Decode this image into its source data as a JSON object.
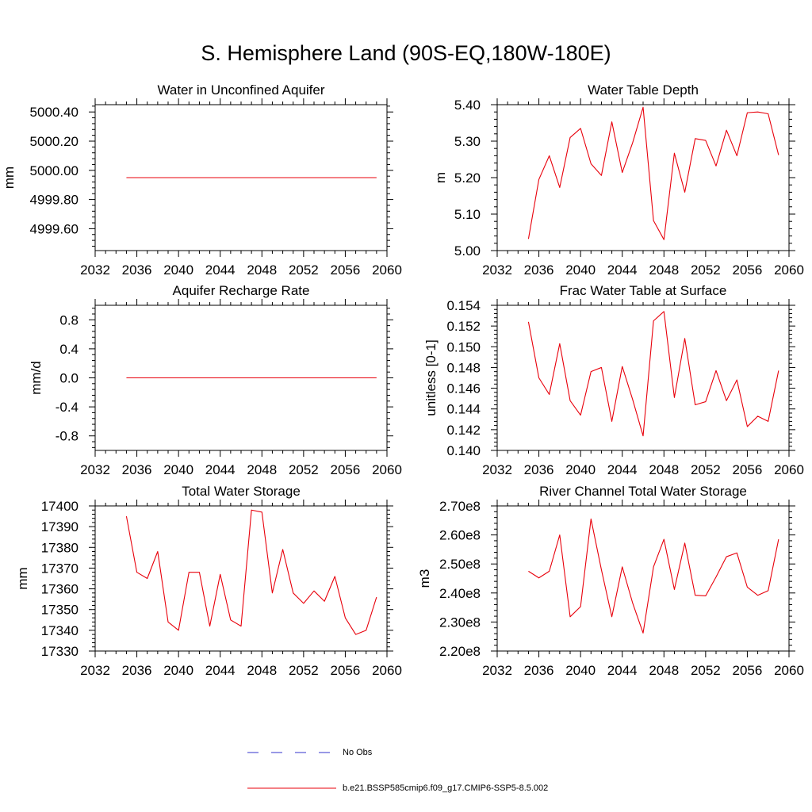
{
  "figure_title": "S. Hemisphere Land (90S-EQ,180W-180E)",
  "colors": {
    "model": "#e8000b",
    "obs": "#3333cc",
    "axis": "#000000"
  },
  "legend": {
    "entries": [
      {
        "label": "No Obs",
        "style": "dashed",
        "color": "#3333cc"
      },
      {
        "label": "b.e21.BSSP585cmip6.f09_g17.CMIP6-SSP5-8.5.002",
        "style": "solid",
        "color": "#e8000b"
      }
    ]
  },
  "chart_data": [
    {
      "type": "line",
      "title": "Water in Unconfined Aquifer",
      "ylabel": "mm",
      "xlim": [
        2032,
        2060
      ],
      "ylim": [
        4999.45,
        5000.45
      ],
      "xticks": [
        "2032",
        "2036",
        "2040",
        "2044",
        "2048",
        "2052",
        "2056",
        "2060"
      ],
      "yticks": [
        {
          "v": 4999.6,
          "label": "4999.60"
        },
        {
          "v": 4999.8,
          "label": "4999.80"
        },
        {
          "v": 5000.0,
          "label": "5000.00"
        },
        {
          "v": 5000.2,
          "label": "5000.20"
        },
        {
          "v": 5000.4,
          "label": "5000.40"
        }
      ],
      "series": [
        {
          "x": [
            2035,
            2036,
            2037,
            2038,
            2039,
            2040,
            2041,
            2042,
            2043,
            2044,
            2045,
            2046,
            2047,
            2048,
            2049,
            2050,
            2051,
            2052,
            2053,
            2054,
            2055,
            2056,
            2057,
            2058,
            2059
          ],
          "y": [
            4999.95,
            4999.95,
            4999.95,
            4999.95,
            4999.95,
            4999.95,
            4999.95,
            4999.95,
            4999.95,
            4999.95,
            4999.95,
            4999.95,
            4999.95,
            4999.95,
            4999.95,
            4999.95,
            4999.95,
            4999.95,
            4999.95,
            4999.95,
            4999.95,
            4999.95,
            4999.95,
            4999.95,
            4999.95
          ]
        }
      ]
    },
    {
      "type": "line",
      "title": "Water Table Depth",
      "ylabel": "m",
      "xlim": [
        2032,
        2060
      ],
      "ylim": [
        5.0,
        5.4
      ],
      "xticks": [
        "2032",
        "2036",
        "2040",
        "2044",
        "2048",
        "2052",
        "2056",
        "2060"
      ],
      "yticks": [
        {
          "v": 5.0,
          "label": "5.00"
        },
        {
          "v": 5.1,
          "label": "5.10"
        },
        {
          "v": 5.2,
          "label": "5.20"
        },
        {
          "v": 5.3,
          "label": "5.30"
        },
        {
          "v": 5.4,
          "label": "5.40"
        }
      ],
      "series": [
        {
          "x": [
            2035,
            2036,
            2037,
            2038,
            2039,
            2040,
            2041,
            2042,
            2043,
            2044,
            2045,
            2046,
            2047,
            2048,
            2049,
            2050,
            2051,
            2052,
            2053,
            2054,
            2055,
            2056,
            2057,
            2058,
            2059
          ],
          "y": [
            5.032,
            5.195,
            5.26,
            5.173,
            5.31,
            5.335,
            5.238,
            5.206,
            5.353,
            5.214,
            5.296,
            5.393,
            5.082,
            5.03,
            5.267,
            5.16,
            5.307,
            5.302,
            5.232,
            5.33,
            5.26,
            5.378,
            5.38,
            5.375,
            5.262
          ]
        }
      ]
    },
    {
      "type": "line",
      "title": "Aquifer Recharge Rate",
      "ylabel": "mm/d",
      "xlim": [
        2032,
        2060
      ],
      "ylim": [
        -1.0,
        1.0
      ],
      "xticks": [
        "2032",
        "2036",
        "2040",
        "2044",
        "2048",
        "2052",
        "2056",
        "2060"
      ],
      "yticks": [
        {
          "v": -0.8,
          "label": "-0.8"
        },
        {
          "v": -0.4,
          "label": "-0.4"
        },
        {
          "v": 0.0,
          "label": "0.0"
        },
        {
          "v": 0.4,
          "label": "0.4"
        },
        {
          "v": 0.8,
          "label": "0.8"
        }
      ],
      "series": [
        {
          "x": [
            2035,
            2036,
            2037,
            2038,
            2039,
            2040,
            2041,
            2042,
            2043,
            2044,
            2045,
            2046,
            2047,
            2048,
            2049,
            2050,
            2051,
            2052,
            2053,
            2054,
            2055,
            2056,
            2057,
            2058,
            2059
          ],
          "y": [
            0,
            0,
            0,
            0,
            0,
            0,
            0,
            0,
            0,
            0,
            0,
            0,
            0,
            0,
            0,
            0,
            0,
            0,
            0,
            0,
            0,
            0,
            0,
            0,
            0
          ]
        }
      ]
    },
    {
      "type": "line",
      "title": "Frac Water Table at Surface",
      "ylabel": "unitless [0-1]",
      "xlim": [
        2032,
        2060
      ],
      "ylim": [
        0.14,
        0.154
      ],
      "xticks": [
        "2032",
        "2036",
        "2040",
        "2044",
        "2048",
        "2052",
        "2056",
        "2060"
      ],
      "yticks": [
        {
          "v": 0.14,
          "label": "0.140"
        },
        {
          "v": 0.142,
          "label": "0.142"
        },
        {
          "v": 0.144,
          "label": "0.144"
        },
        {
          "v": 0.146,
          "label": "0.146"
        },
        {
          "v": 0.148,
          "label": "0.148"
        },
        {
          "v": 0.15,
          "label": "0.150"
        },
        {
          "v": 0.152,
          "label": "0.152"
        },
        {
          "v": 0.154,
          "label": "0.154"
        }
      ],
      "series": [
        {
          "x": [
            2035,
            2036,
            2037,
            2038,
            2039,
            2040,
            2041,
            2042,
            2043,
            2044,
            2045,
            2046,
            2047,
            2048,
            2049,
            2050,
            2051,
            2052,
            2053,
            2054,
            2055,
            2056,
            2057,
            2058,
            2059
          ],
          "y": [
            0.1524,
            0.147,
            0.1454,
            0.1503,
            0.1448,
            0.1434,
            0.1476,
            0.148,
            0.1428,
            0.1481,
            0.1449,
            0.1414,
            0.1525,
            0.1534,
            0.1451,
            0.1508,
            0.1444,
            0.1447,
            0.1477,
            0.1448,
            0.1468,
            0.1423,
            0.1433,
            0.1428,
            0.1477
          ]
        }
      ]
    },
    {
      "type": "line",
      "title": "Total Water Storage",
      "ylabel": "mm",
      "xlim": [
        2032,
        2060
      ],
      "ylim": [
        17330,
        17400
      ],
      "xticks": [
        "2032",
        "2036",
        "2040",
        "2044",
        "2048",
        "2052",
        "2056",
        "2060"
      ],
      "yticks": [
        {
          "v": 17330,
          "label": "17330"
        },
        {
          "v": 17340,
          "label": "17340"
        },
        {
          "v": 17350,
          "label": "17350"
        },
        {
          "v": 17360,
          "label": "17360"
        },
        {
          "v": 17370,
          "label": "17370"
        },
        {
          "v": 17380,
          "label": "17380"
        },
        {
          "v": 17390,
          "label": "17390"
        },
        {
          "v": 17400,
          "label": "17400"
        }
      ],
      "series": [
        {
          "x": [
            2035,
            2036,
            2037,
            2038,
            2039,
            2040,
            2041,
            2042,
            2043,
            2044,
            2045,
            2046,
            2047,
            2048,
            2049,
            2050,
            2051,
            2052,
            2053,
            2054,
            2055,
            2056,
            2057,
            2058,
            2059
          ],
          "y": [
            17395,
            17368,
            17365,
            17378,
            17344,
            17340,
            17368,
            17368,
            17342,
            17367,
            17345,
            17342,
            17398,
            17397,
            17358,
            17379,
            17358,
            17353,
            17359,
            17354,
            17366,
            17346,
            17338,
            17340,
            17356
          ]
        }
      ]
    },
    {
      "type": "line",
      "title": "River Channel Total Water Storage",
      "ylabel": "m3",
      "xlim": [
        2032,
        2060
      ],
      "ylim": [
        220000000.0,
        270000000.0
      ],
      "xticks": [
        "2032",
        "2036",
        "2040",
        "2044",
        "2048",
        "2052",
        "2056",
        "2060"
      ],
      "yticks": [
        {
          "v": 220000000.0,
          "label": "2.20e8"
        },
        {
          "v": 230000000.0,
          "label": "2.30e8"
        },
        {
          "v": 240000000.0,
          "label": "2.40e8"
        },
        {
          "v": 250000000.0,
          "label": "2.50e8"
        },
        {
          "v": 260000000.0,
          "label": "2.60e8"
        },
        {
          "v": 270000000.0,
          "label": "2.70e8"
        }
      ],
      "series": [
        {
          "x": [
            2035,
            2036,
            2037,
            2038,
            2039,
            2040,
            2041,
            2042,
            2043,
            2044,
            2045,
            2046,
            2047,
            2048,
            2049,
            2050,
            2051,
            2052,
            2053,
            2054,
            2055,
            2056,
            2057,
            2058,
            2059
          ],
          "y": [
            247500000.0,
            245200000.0,
            247500000.0,
            260000000.0,
            231800000.0,
            235300000.0,
            265500000.0,
            248000000.0,
            231800000.0,
            249000000.0,
            236500000.0,
            226200000.0,
            249000000.0,
            258500000.0,
            241200000.0,
            257200000.0,
            239200000.0,
            239000000.0,
            245500000.0,
            252500000.0,
            253800000.0,
            242000000.0,
            239200000.0,
            240800000.0,
            258500000.0
          ]
        }
      ]
    }
  ]
}
